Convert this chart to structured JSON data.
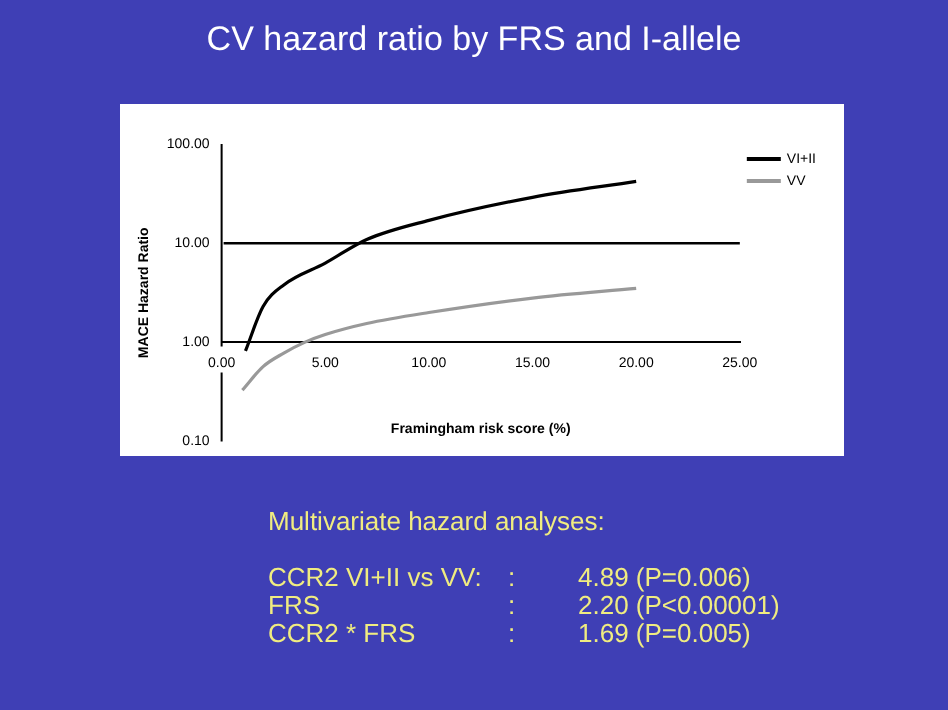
{
  "chart_data": {
    "type": "line",
    "title": "CV hazard ratio by FRS and I-allele",
    "xlabel": "Framingham risk score (%)",
    "ylabel": "MACE Hazard Ratio",
    "x": [
      1.15,
      2,
      3,
      5,
      7,
      10,
      15,
      20
    ],
    "series": [
      {
        "name": "VV",
        "color": "#999999",
        "x": [
          1,
          2,
          3,
          4,
          5,
          7,
          10,
          15,
          20
        ],
        "values": [
          0.33,
          0.57,
          0.78,
          1.0,
          1.2,
          1.55,
          2.0,
          2.8,
          3.5
        ]
      },
      {
        "name": "VI+II",
        "color": "#000000",
        "values": [
          0.82,
          2.3,
          3.8,
          6.3,
          10.9,
          17,
          29,
          42
        ]
      }
    ],
    "log": "y",
    "xlim": [
      0,
      25
    ],
    "ylim": [
      0.1,
      100
    ],
    "xticks": [
      {
        "value": 0,
        "label": "0.00"
      },
      {
        "value": 5,
        "label": "5.00"
      },
      {
        "value": 10,
        "label": "10.00"
      },
      {
        "value": 15,
        "label": "15.00"
      },
      {
        "value": 20,
        "label": "20.00"
      },
      {
        "value": 25,
        "label": "25.00"
      }
    ],
    "yticks": [
      {
        "value": 0.1,
        "label": "0.10"
      },
      {
        "value": 1,
        "label": "1.00"
      },
      {
        "value": 10,
        "label": "10.00"
      },
      {
        "value": 100,
        "label": "100.00"
      }
    ],
    "ref_lines": [
      {
        "axis": "y",
        "value": 10,
        "color": "#000000"
      }
    ],
    "legend": "top right",
    "marker": "none",
    "line_style": "solid",
    "annotations": [
      "Multivariate hazard analyses:",
      "CCR2 VI+II vs VV:",
      ":",
      "4.89 (P=0.006)",
      "FRS",
      ":",
      "2.20 (P<0.00001)",
      "CCR2 * FRS",
      ":",
      "1.69 (P=0.005)"
    ]
  }
}
